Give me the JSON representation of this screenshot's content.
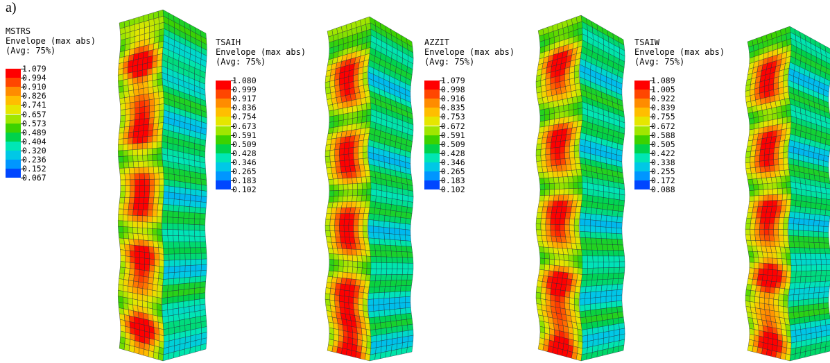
{
  "panel_label": "a)",
  "legends": [
    {
      "title": "MSTRS",
      "subtitle1": "Envelope (max abs)",
      "subtitle2": "(Avg: 75%)",
      "values": [
        "1.079",
        "0.994",
        "0.910",
        "0.826",
        "0.741",
        "0.657",
        "0.573",
        "0.489",
        "0.404",
        "0.320",
        "0.236",
        "0.152",
        "0.067"
      ]
    },
    {
      "title": "TSAIH",
      "subtitle1": "Envelope (max abs)",
      "subtitle2": "(Avg: 75%)",
      "values": [
        "1.080",
        "0.999",
        "0.917",
        "0.836",
        "0.754",
        "0.673",
        "0.591",
        "0.509",
        "0.428",
        "0.346",
        "0.265",
        "0.183",
        "0.102"
      ]
    },
    {
      "title": "AZZIT",
      "subtitle1": "Envelope (max abs)",
      "subtitle2": "(Avg: 75%)",
      "values": [
        "1.079",
        "0.998",
        "0.916",
        "0.835",
        "0.753",
        "0.672",
        "0.591",
        "0.509",
        "0.428",
        "0.346",
        "0.265",
        "0.183",
        "0.102"
      ]
    },
    {
      "title": "TSAIW",
      "subtitle1": "Envelope (max abs)",
      "subtitle2": "(Avg: 75%)",
      "values": [
        "1.089",
        "1.005",
        "0.922",
        "0.839",
        "0.755",
        "0.672",
        "0.588",
        "0.505",
        "0.422",
        "0.338",
        "0.255",
        "0.172",
        "0.088"
      ]
    }
  ],
  "colormap": [
    "#ff0000",
    "#ff4600",
    "#ff8c00",
    "#ffbe00",
    "#e6e600",
    "#a0e600",
    "#3cd200",
    "#00d24b",
    "#00e6b4",
    "#00c8e6",
    "#0096ff",
    "#0046ff",
    "#0000ff"
  ],
  "columns_hotspots": [
    [
      0.14,
      0.32,
      0.53,
      0.73,
      0.93
    ],
    [
      0.17,
      0.4,
      0.62,
      0.83,
      0.98
    ],
    [
      0.14,
      0.37,
      0.59,
      0.8,
      0.97
    ],
    [
      0.14,
      0.36,
      0.57,
      0.76,
      0.95
    ]
  ]
}
